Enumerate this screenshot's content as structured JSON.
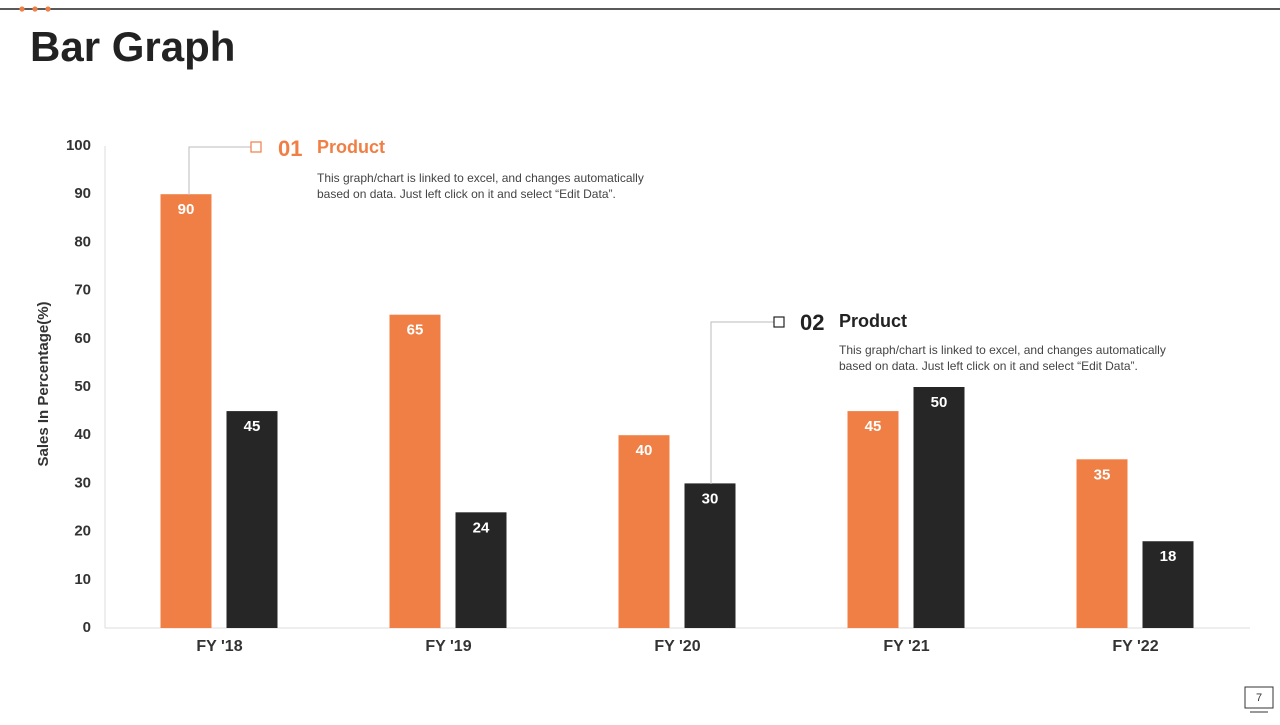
{
  "title": "Bar Graph",
  "page_number": "7",
  "chart_data": {
    "type": "bar",
    "y_label": "Sales In Percentage(%)",
    "categories": [
      "FY '18",
      "FY '19",
      "FY '20",
      "FY '21",
      "FY '22"
    ],
    "series": [
      {
        "name": "Product",
        "number": "01",
        "color": "#f07f45",
        "values": [
          90,
          65,
          40,
          45,
          35
        ],
        "description": [
          "This graph/chart is linked to excel, and changes automatically",
          "based on data. Just left click on it and select “Edit Data”."
        ]
      },
      {
        "name": "Product",
        "number": "02",
        "color": "#262626",
        "values": [
          45,
          24,
          30,
          50,
          18
        ],
        "description": [
          "This graph/chart is linked to excel, and changes automatically",
          "based on data. Just left click on it and select “Edit Data”."
        ]
      }
    ],
    "ylim": [
      0,
      100
    ],
    "yticks": [
      0,
      10,
      20,
      30,
      40,
      50,
      60,
      70,
      80,
      90,
      100
    ],
    "grid": false
  }
}
